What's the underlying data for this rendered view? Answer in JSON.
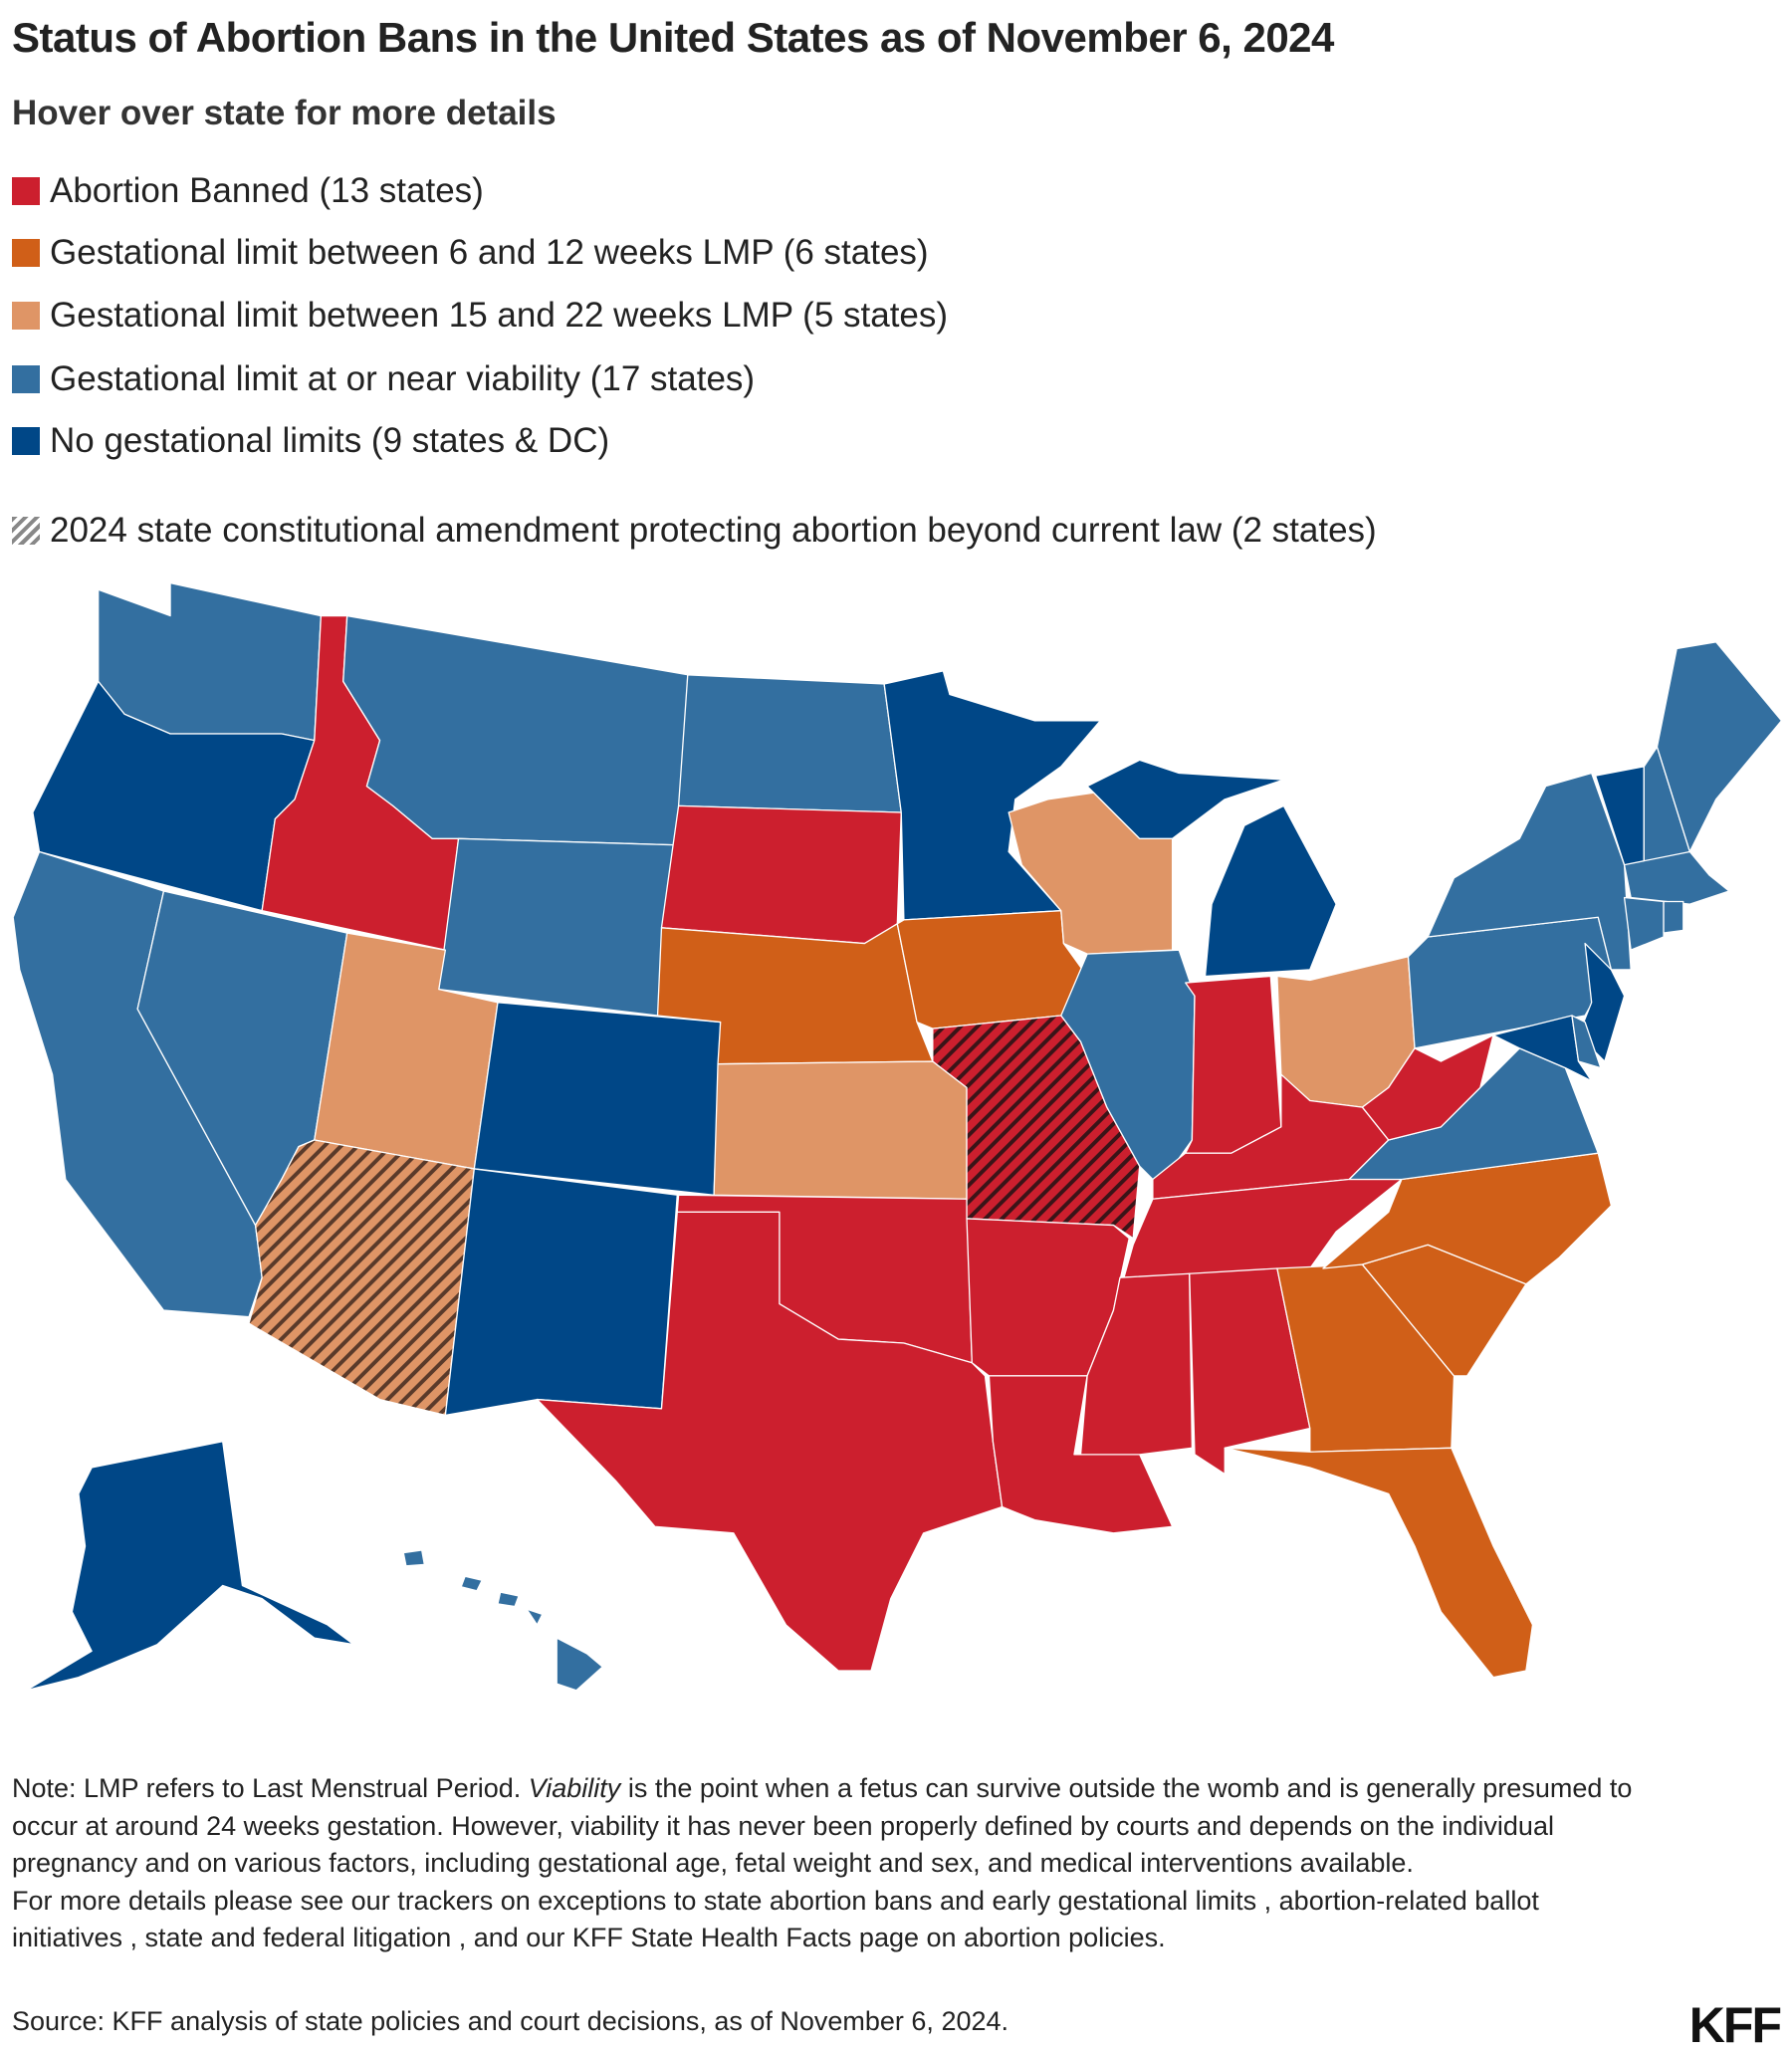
{
  "title": "Status of Abortion Bans in the United States as of November 6, 2024",
  "subtitle": "Hover over state for more details",
  "legend": [
    {
      "key": "banned",
      "label": "Abortion Banned (13 states)",
      "color": "#cc1f2e"
    },
    {
      "key": "ges6_12",
      "label": "Gestational limit between 6 and 12 weeks LMP (6 states)",
      "color": "#d05f18"
    },
    {
      "key": "ges15_22",
      "label": "Gestational limit between 15 and 22 weeks LMP (5 states)",
      "color": "#df9566"
    },
    {
      "key": "viability",
      "label": "Gestational limit at or near viability (17 states)",
      "color": "#336fa0"
    },
    {
      "key": "none",
      "label": "No gestational limits (9 states & DC)",
      "color": "#004787"
    }
  ],
  "amendment_legend": {
    "label": "2024 state constitutional amendment protecting abortion beyond current law (2 states)",
    "pattern": "diagonal-hatch"
  },
  "states": {
    "WA": "viability",
    "OR": "none",
    "CA": "viability",
    "NV": "viability",
    "ID": "banned",
    "MT": "viability",
    "WY": "viability",
    "UT": "ges15_22",
    "AZ": "ges15_22",
    "CO": "none",
    "NM": "none",
    "ND": "viability",
    "SD": "banned",
    "NE": "ges6_12",
    "KS": "ges15_22",
    "OK": "banned",
    "TX": "banned",
    "MN": "none",
    "IA": "ges6_12",
    "MO": "banned",
    "AR": "banned",
    "LA": "banned",
    "WI": "ges15_22",
    "IL": "viability",
    "MI": "none",
    "IN": "banned",
    "OH": "ges15_22",
    "KY": "banned",
    "TN": "banned",
    "MS": "banned",
    "AL": "banned",
    "GA": "ges6_12",
    "FL": "ges6_12",
    "SC": "ges6_12",
    "NC": "ges6_12",
    "VA": "viability",
    "WV": "banned",
    "PA": "viability",
    "NY": "viability",
    "NJ": "none",
    "MD": "none",
    "DE": "viability",
    "VT": "none",
    "NH": "viability",
    "ME": "viability",
    "MA": "viability",
    "CT": "viability",
    "RI": "viability",
    "AK": "none",
    "HI": "viability"
  },
  "amendment_states": [
    "AZ",
    "MO"
  ],
  "notes": {
    "note_prefix": "Note: LMP refers to Last Menstrual Period. ",
    "note_italic": "Viability",
    "note_rest": " is the point when a fetus can survive outside the womb and is generally presumed to occur at around 24 weeks gestation. However, viability it has never been properly defined by courts and depends on the individual pregnancy and on various factors, including gestational age, fetal weight and sex, and medical interventions available.",
    "more": "For more details please see our trackers on exceptions to state abortion bans and early gestational limits , abortion-related ballot initiatives , state and federal litigation , and our KFF State Health Facts page on abortion policies."
  },
  "source": "Source: KFF analysis of state policies and court decisions, as of November 6, 2024.",
  "logo": "KFF"
}
